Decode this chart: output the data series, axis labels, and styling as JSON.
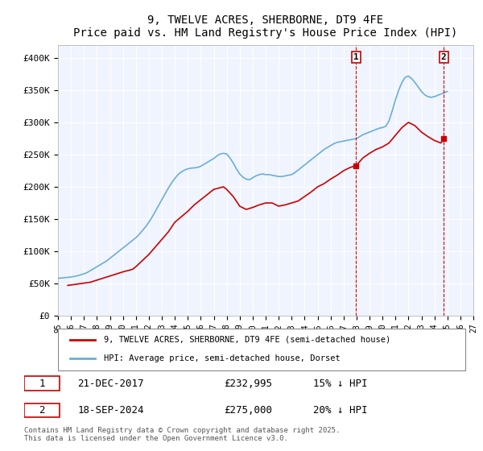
{
  "title": "9, TWELVE ACRES, SHERBORNE, DT9 4FE",
  "subtitle": "Price paid vs. HM Land Registry's House Price Index (HPI)",
  "hpi_color": "#6baed6",
  "price_color": "#cc0000",
  "background_color": "#f0f4ff",
  "plot_bg": "#f0f4ff",
  "ylim": [
    0,
    420000
  ],
  "yticks": [
    0,
    50000,
    100000,
    150000,
    200000,
    250000,
    300000,
    350000,
    400000
  ],
  "ytick_labels": [
    "£0",
    "£50K",
    "£100K",
    "£150K",
    "£200K",
    "£250K",
    "£300K",
    "£350K",
    "£400K"
  ],
  "xmin_year": 1995,
  "xmax_year": 2027,
  "xtick_years": [
    1995,
    1996,
    1997,
    1998,
    1999,
    2000,
    2001,
    2002,
    2003,
    2004,
    2005,
    2006,
    2007,
    2008,
    2009,
    2010,
    2011,
    2012,
    2013,
    2014,
    2015,
    2016,
    2017,
    2018,
    2019,
    2020,
    2021,
    2022,
    2023,
    2024,
    2025,
    2026,
    2027
  ],
  "marker1_year": 2017.97,
  "marker1_price": 232995,
  "marker1_label": "1",
  "marker1_date": "21-DEC-2017",
  "marker1_price_str": "£232,995",
  "marker1_pct": "15% ↓ HPI",
  "marker2_year": 2024.72,
  "marker2_price": 275000,
  "marker2_label": "2",
  "marker2_date": "18-SEP-2024",
  "marker2_price_str": "£275,000",
  "marker2_pct": "20% ↓ HPI",
  "legend_line1": "9, TWELVE ACRES, SHERBORNE, DT9 4FE (semi-detached house)",
  "legend_line2": "HPI: Average price, semi-detached house, Dorset",
  "footer": "Contains HM Land Registry data © Crown copyright and database right 2025.\nThis data is licensed under the Open Government Licence v3.0.",
  "hpi_data_x": [
    1995.0,
    1995.25,
    1995.5,
    1995.75,
    1996.0,
    1996.25,
    1996.5,
    1996.75,
    1997.0,
    1997.25,
    1997.5,
    1997.75,
    1998.0,
    1998.25,
    1998.5,
    1998.75,
    1999.0,
    1999.25,
    1999.5,
    1999.75,
    2000.0,
    2000.25,
    2000.5,
    2000.75,
    2001.0,
    2001.25,
    2001.5,
    2001.75,
    2002.0,
    2002.25,
    2002.5,
    2002.75,
    2003.0,
    2003.25,
    2003.5,
    2003.75,
    2004.0,
    2004.25,
    2004.5,
    2004.75,
    2005.0,
    2005.25,
    2005.5,
    2005.75,
    2006.0,
    2006.25,
    2006.5,
    2006.75,
    2007.0,
    2007.25,
    2007.5,
    2007.75,
    2008.0,
    2008.25,
    2008.5,
    2008.75,
    2009.0,
    2009.25,
    2009.5,
    2009.75,
    2010.0,
    2010.25,
    2010.5,
    2010.75,
    2011.0,
    2011.25,
    2011.5,
    2011.75,
    2012.0,
    2012.25,
    2012.5,
    2012.75,
    2013.0,
    2013.25,
    2013.5,
    2013.75,
    2014.0,
    2014.25,
    2014.5,
    2014.75,
    2015.0,
    2015.25,
    2015.5,
    2015.75,
    2016.0,
    2016.25,
    2016.5,
    2016.75,
    2017.0,
    2017.25,
    2017.5,
    2017.75,
    2018.0,
    2018.25,
    2018.5,
    2018.75,
    2019.0,
    2019.25,
    2019.5,
    2019.75,
    2020.0,
    2020.25,
    2020.5,
    2020.75,
    2021.0,
    2021.25,
    2021.5,
    2021.75,
    2022.0,
    2022.25,
    2022.5,
    2022.75,
    2023.0,
    2023.25,
    2023.5,
    2023.75,
    2024.0,
    2024.25,
    2024.5,
    2024.75,
    2025.0
  ],
  "hpi_data_y": [
    58000,
    58500,
    59000,
    59500,
    60000,
    61000,
    62000,
    63500,
    65000,
    67000,
    70000,
    73000,
    76000,
    79000,
    82000,
    85000,
    89000,
    93000,
    97000,
    101000,
    105000,
    109000,
    113000,
    117000,
    121000,
    126000,
    132000,
    138000,
    145000,
    153000,
    162000,
    171000,
    180000,
    189000,
    198000,
    206000,
    213000,
    219000,
    223000,
    226000,
    228000,
    229000,
    229500,
    230000,
    232000,
    235000,
    238000,
    241000,
    244000,
    248000,
    251000,
    252000,
    251000,
    245000,
    237000,
    228000,
    220000,
    215000,
    212000,
    211000,
    214000,
    217000,
    219000,
    220000,
    219000,
    219000,
    218000,
    217000,
    216000,
    216000,
    217000,
    218000,
    219000,
    222000,
    226000,
    230000,
    234000,
    238000,
    242000,
    246000,
    250000,
    254000,
    258000,
    261000,
    264000,
    267000,
    269000,
    270000,
    271000,
    272000,
    273000,
    274000,
    275000,
    278000,
    281000,
    283000,
    285000,
    287000,
    289000,
    291000,
    292000,
    294000,
    302000,
    318000,
    335000,
    350000,
    362000,
    370000,
    372000,
    368000,
    362000,
    355000,
    348000,
    343000,
    340000,
    339000,
    340000,
    342000,
    344000,
    346000,
    348000
  ],
  "price_data_x": [
    1995.75,
    1997.5,
    2000.0,
    2000.75,
    2001.0,
    2002.0,
    2003.5,
    2004.0,
    2005.0,
    2005.5,
    2006.0,
    2006.5,
    2007.0,
    2007.75,
    2008.0,
    2008.5,
    2009.0,
    2009.5,
    2010.0,
    2010.5,
    2011.0,
    2011.5,
    2012.0,
    2012.5,
    2013.0,
    2013.5,
    2014.0,
    2014.5,
    2015.0,
    2015.5,
    2016.0,
    2016.5,
    2017.0,
    2017.5,
    2017.97,
    2018.5,
    2019.0,
    2019.5,
    2020.0,
    2020.5,
    2021.0,
    2021.5,
    2022.0,
    2022.5,
    2023.0,
    2023.5,
    2024.0,
    2024.5,
    2024.72
  ],
  "price_data_y": [
    47000,
    52000,
    68000,
    72000,
    76000,
    95000,
    130000,
    145000,
    162000,
    172000,
    180000,
    188000,
    196000,
    200000,
    196000,
    185000,
    170000,
    165000,
    168000,
    172000,
    175000,
    175000,
    170000,
    172000,
    175000,
    178000,
    185000,
    192000,
    200000,
    205000,
    212000,
    218000,
    225000,
    230000,
    232995,
    245000,
    252000,
    258000,
    262000,
    268000,
    280000,
    292000,
    300000,
    295000,
    285000,
    278000,
    272000,
    268000,
    275000
  ]
}
